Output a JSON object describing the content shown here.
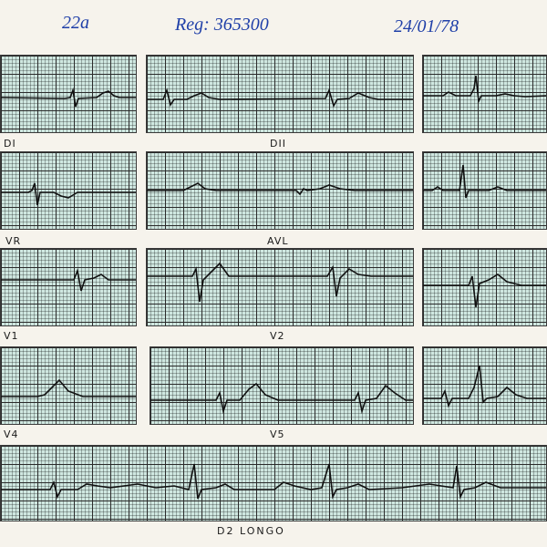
{
  "header": {
    "age": "22a",
    "registration": "Reg: 365300",
    "date": "24/01/78"
  },
  "leads": {
    "d1": "DI",
    "d2": "DII",
    "avr": "VR",
    "avl": "AVL",
    "v1": "V1",
    "v2": "V2",
    "v4": "V4",
    "v5": "V5",
    "d2_long": "D2 LONGO"
  },
  "colors": {
    "ink": "#1f3fa8",
    "grid_paper": "#cfe7e0",
    "trace": "#111111"
  }
}
